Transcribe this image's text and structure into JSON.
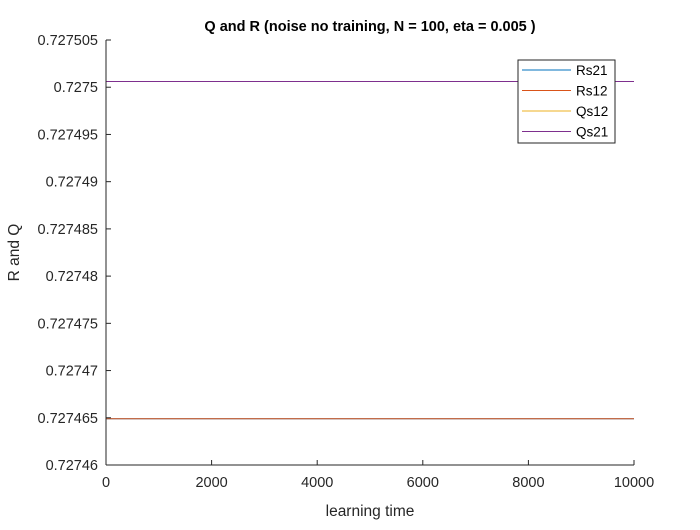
{
  "chart_data": {
    "type": "line",
    "title": "Q and R (noise no training, N = 100, eta = 0.005 )",
    "xlabel": "learning time",
    "ylabel": "R and Q",
    "xlim": [
      0,
      10000
    ],
    "ylim": [
      0.72746,
      0.727505
    ],
    "x_ticks": [
      0,
      2000,
      4000,
      6000,
      8000,
      10000
    ],
    "x_tick_labels": [
      "0",
      "2000",
      "4000",
      "6000",
      "8000",
      "10000"
    ],
    "y_ticks": [
      0.72746,
      0.727465,
      0.72747,
      0.727475,
      0.72748,
      0.727485,
      0.72749,
      0.727495,
      0.7275,
      0.727505
    ],
    "y_tick_labels": [
      "0.72746",
      "0.727465",
      "0.72747",
      "0.727475",
      "0.72748",
      "0.727485",
      "0.72749",
      "0.727495",
      "0.7275",
      "0.727505"
    ],
    "grid": false,
    "legend_position": "top-right",
    "series": [
      {
        "name": "Rs21",
        "color": "#0072BD",
        "x": [
          0,
          10000
        ],
        "y": [
          0.7274649,
          0.7274649
        ]
      },
      {
        "name": "Rs12",
        "color": "#D95319",
        "x": [
          0,
          10000
        ],
        "y": [
          0.7274649,
          0.7274649
        ]
      },
      {
        "name": "Qs12",
        "color": "#EDB120",
        "x": [
          0,
          10000
        ],
        "y": [
          0.7275006,
          0.7275006
        ]
      },
      {
        "name": "Qs21",
        "color": "#7E2F8E",
        "x": [
          0,
          10000
        ],
        "y": [
          0.7275006,
          0.7275006
        ]
      }
    ]
  }
}
